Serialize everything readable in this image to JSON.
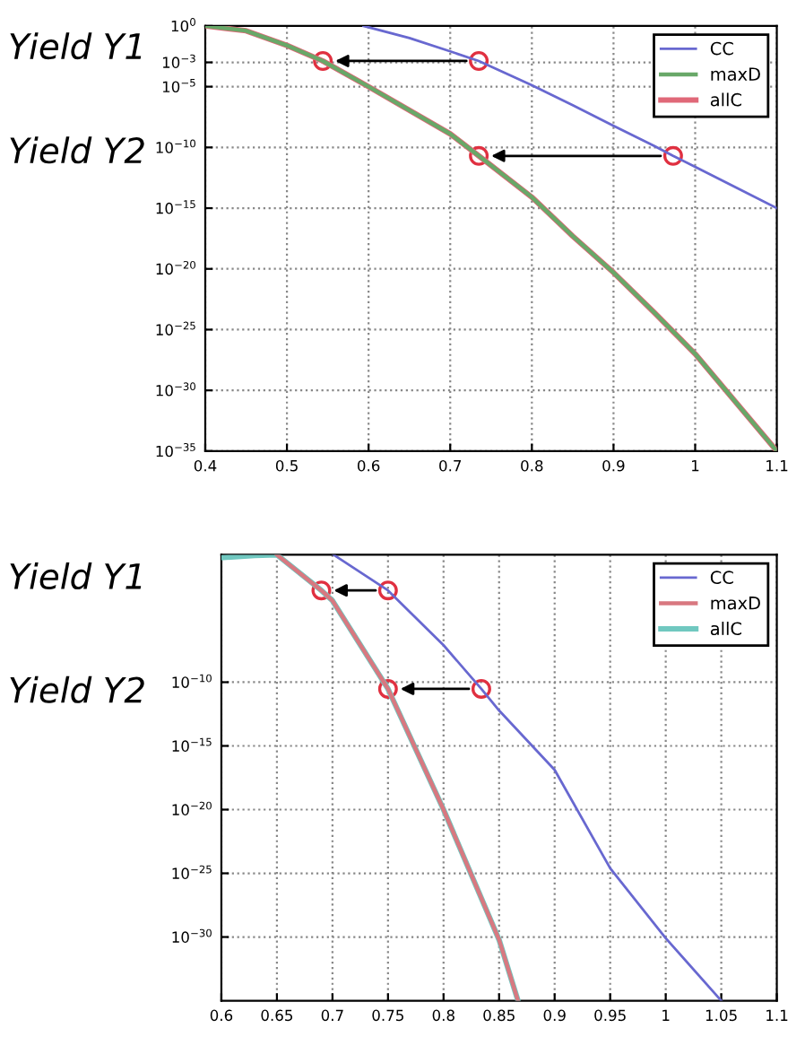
{
  "chart_data": [
    {
      "type": "line",
      "log": "y",
      "grid": true,
      "legend": "top right",
      "xlim": [
        0.4,
        1.1
      ],
      "xticks": [
        0.4,
        0.5,
        0.6,
        0.7,
        0.8,
        0.9,
        1,
        1.1
      ],
      "ylim": [
        1e-35,
        1
      ],
      "yticks": [
        {
          "value": 1,
          "label": "10$^{0}$"
        },
        {
          "value": 0.001,
          "label": "10$^{−3}$"
        },
        {
          "value": 1e-05,
          "label": "10$^{−5}$"
        },
        {
          "value": 1e-10,
          "label": "10$^{−10}$"
        },
        {
          "value": 1e-15,
          "label": "10$^{−15}$"
        },
        {
          "value": 1e-20,
          "label": "10$^{−20}$"
        },
        {
          "value": 1e-25,
          "label": "10$^{−25}$"
        },
        {
          "value": 1e-30,
          "label": "10$^{−30}$"
        },
        {
          "value": 1e-35,
          "label": "10$^{−35}$"
        }
      ],
      "annotations": [
        "Yield Y1",
        "Yield Y2"
      ],
      "series": [
        {
          "name": "CC",
          "color": "#6868d0",
          "x": [
            0.594,
            0.65,
            0.7,
            0.735,
            0.8,
            0.85,
            0.9,
            0.95,
            0.973,
            1.0,
            1.05,
            1.1
          ],
          "values": [
            1,
            0.1,
            0.008,
            0.0013,
            1.3e-05,
            3e-07,
            6e-09,
            1.3e-10,
            2e-11,
            2.5e-12,
            5e-14,
            1e-15
          ]
        },
        {
          "name": "maxD",
          "color": "#68a868",
          "x": [
            0.4,
            0.45,
            0.5,
            0.544,
            0.6,
            0.7,
            0.735,
            0.8,
            0.85,
            0.9,
            0.95,
            1.0,
            1.1
          ],
          "values": [
            1,
            0.4,
            0.025,
            0.0013,
            1e-05,
            1.3e-09,
            2e-11,
            8e-15,
            5e-18,
            5e-21,
            2.5e-24,
            1e-27,
            1e-35
          ]
        },
        {
          "name": "allC",
          "color": "#e06878",
          "x": [
            0.4,
            0.45,
            0.5,
            0.544,
            0.6,
            0.7,
            0.735,
            0.8,
            0.85,
            0.9,
            0.95,
            1.0,
            1.1
          ],
          "values": [
            1,
            0.4,
            0.025,
            0.0013,
            1e-05,
            1.3e-09,
            2e-11,
            8e-15,
            5e-18,
            5e-21,
            2.5e-24,
            1e-27,
            1e-35
          ]
        },
        {
          "type": "scatter",
          "marker": "circle",
          "color": "#e03040",
          "x": [
            0.735,
            0.544,
            0.973,
            0.735
          ],
          "values": [
            0.0013,
            0.0013,
            2e-11,
            2e-11
          ]
        }
      ]
    },
    {
      "type": "line",
      "log": "y",
      "grid": true,
      "legend": "top right",
      "xlim": [
        0.6,
        1.1
      ],
      "xticks": [
        0.6,
        0.65,
        0.7,
        0.75,
        0.8,
        0.85,
        0.9,
        0.95,
        1,
        1.05,
        1.1
      ],
      "ylim": [
        1e-35,
        1
      ],
      "yticks": [
        {
          "value": 1e-10,
          "label": "10$^{−10}$"
        },
        {
          "value": 1e-15,
          "label": "10$^{−15}$"
        },
        {
          "value": 1e-20,
          "label": "10$^{−20}$"
        },
        {
          "value": 1e-25,
          "label": "10$^{−25}$"
        },
        {
          "value": 1e-30,
          "label": "10$^{−30}$"
        }
      ],
      "annotations": [
        "Yield Y1",
        "Yield Y2"
      ],
      "series": [
        {
          "name": "CC",
          "color": "#6868d0",
          "x": [
            0.701,
            0.75,
            0.8,
            0.834,
            0.85,
            0.9,
            0.95,
            1.0,
            1.05
          ],
          "values": [
            1,
            0.0016,
            8e-08,
            3e-11,
            6e-13,
            1.3e-17,
            2.5e-25,
            8e-31,
            1e-35
          ]
        },
        {
          "name": "maxD",
          "color": "#d87880",
          "x": [
            0.65,
            0.69,
            0.7,
            0.75,
            0.8,
            0.85,
            0.867
          ],
          "values": [
            1,
            0.0016,
            0.00025,
            3e-11,
            1e-20,
            6e-31,
            1e-35
          ]
        },
        {
          "name": "allC",
          "color": "#70c8c0",
          "x": [
            0.6,
            0.63,
            0.65,
            0.69,
            0.7,
            0.75,
            0.8,
            0.85,
            0.867
          ],
          "values": [
            0.6,
            0.9,
            1,
            0.0016,
            0.00025,
            3e-11,
            1e-20,
            6e-31,
            1e-35
          ]
        },
        {
          "type": "scatter",
          "marker": "circle",
          "color": "#e03040",
          "x": [
            0.75,
            0.69,
            0.834,
            0.75
          ],
          "values": [
            0.0016,
            0.0016,
            3e-11,
            3e-11
          ]
        }
      ]
    }
  ]
}
